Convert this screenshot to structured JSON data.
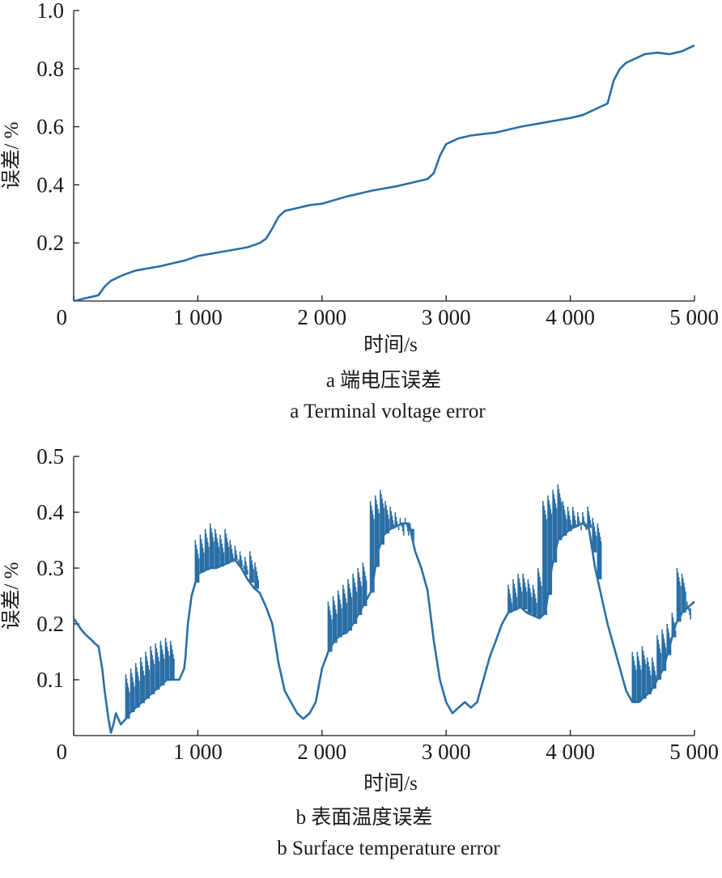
{
  "chart_data": [
    {
      "type": "line",
      "panel": "a",
      "caption_zh": "a 端电压误差",
      "caption_en": "a Terminal voltage error",
      "xlabel": "时间/s",
      "ylabel": "误差/ %",
      "xlim": [
        0,
        5000
      ],
      "ylim": [
        0,
        1.0
      ],
      "xticks": [
        0,
        1000,
        2000,
        3000,
        4000,
        5000
      ],
      "xtick_labels": [
        "0",
        "1 000",
        "2 000",
        "3 000",
        "4 000",
        "5 000"
      ],
      "yticks": [
        0.2,
        0.4,
        0.6,
        0.8,
        1.0
      ],
      "ytick_labels": [
        "0.2",
        "0.4",
        "0.6",
        "0.8",
        "1.0"
      ],
      "color": "#2b6fa6",
      "series": [
        {
          "x": [
            0,
            100,
            200,
            250,
            300,
            400,
            500,
            700,
            900,
            1000,
            1200,
            1400,
            1500,
            1550,
            1600,
            1650,
            1700,
            1800,
            1900,
            2000,
            2200,
            2400,
            2600,
            2700,
            2800,
            2850,
            2900,
            2950,
            3000,
            3100,
            3200,
            3300,
            3400,
            3600,
            3800,
            4000,
            4100,
            4200,
            4250,
            4300,
            4350,
            4400,
            4450,
            4550,
            4600,
            4700,
            4800,
            4900,
            5000
          ],
          "y": [
            0.0,
            0.01,
            0.02,
            0.05,
            0.07,
            0.09,
            0.105,
            0.12,
            0.14,
            0.155,
            0.17,
            0.185,
            0.2,
            0.215,
            0.25,
            0.29,
            0.31,
            0.32,
            0.33,
            0.335,
            0.36,
            0.38,
            0.395,
            0.405,
            0.415,
            0.42,
            0.44,
            0.5,
            0.54,
            0.56,
            0.57,
            0.575,
            0.58,
            0.6,
            0.615,
            0.63,
            0.64,
            0.66,
            0.67,
            0.68,
            0.76,
            0.8,
            0.82,
            0.84,
            0.85,
            0.855,
            0.85,
            0.86,
            0.88
          ]
        }
      ]
    },
    {
      "type": "line",
      "panel": "b",
      "caption_zh": "b 表面温度误差",
      "caption_en": "b Surface temperature error",
      "xlabel": "时间/s",
      "ylabel": "误差/ %",
      "xlim": [
        0,
        5000
      ],
      "ylim": [
        0,
        0.5
      ],
      "xticks": [
        0,
        1000,
        2000,
        3000,
        4000,
        5000
      ],
      "xtick_labels": [
        "0",
        "1 000",
        "2 000",
        "3 000",
        "4 000",
        "5 000"
      ],
      "yticks": [
        0.1,
        0.2,
        0.3,
        0.4,
        0.5
      ],
      "ytick_labels": [
        "0.1",
        "0.2",
        "0.3",
        "0.4",
        "0.5"
      ],
      "color": "#2b6fa6",
      "series": [
        {
          "x": [
            0,
            30,
            60,
            100,
            150,
            170,
            200,
            230,
            250,
            280,
            300,
            320,
            340,
            360,
            380,
            400,
            420,
            450,
            500,
            550,
            600,
            650,
            700,
            750,
            780,
            800,
            850,
            870,
            890,
            900,
            920,
            950,
            1000,
            1050,
            1100,
            1150,
            1200,
            1250,
            1300,
            1350,
            1400,
            1450,
            1500,
            1550,
            1600,
            1650,
            1700,
            1750,
            1800,
            1850,
            1900,
            1950,
            2000,
            2050,
            2100,
            2150,
            2200,
            2250,
            2300,
            2350,
            2400,
            2450,
            2500,
            2550,
            2600,
            2650,
            2700,
            2750,
            2800,
            2850,
            2900,
            2950,
            3000,
            3050,
            3100,
            3150,
            3200,
            3250,
            3300,
            3350,
            3400,
            3450,
            3500,
            3550,
            3600,
            3650,
            3700,
            3750,
            3800,
            3850,
            3900,
            3950,
            4000,
            4050,
            4100,
            4150,
            4200,
            4250,
            4300,
            4350,
            4400,
            4450,
            4500,
            4550,
            4600,
            4650,
            4700,
            4750,
            4800,
            4850,
            4900,
            4950,
            5000
          ],
          "y": [
            0.21,
            0.2,
            0.19,
            0.18,
            0.17,
            0.165,
            0.16,
            0.12,
            0.08,
            0.03,
            0.005,
            0.02,
            0.04,
            0.03,
            0.02,
            0.025,
            0.03,
            0.04,
            0.05,
            0.06,
            0.07,
            0.08,
            0.09,
            0.1,
            0.1,
            0.1,
            0.1,
            0.11,
            0.12,
            0.14,
            0.2,
            0.25,
            0.29,
            0.295,
            0.3,
            0.3,
            0.305,
            0.31,
            0.315,
            0.3,
            0.28,
            0.265,
            0.255,
            0.23,
            0.2,
            0.13,
            0.08,
            0.06,
            0.04,
            0.03,
            0.04,
            0.06,
            0.12,
            0.15,
            0.17,
            0.18,
            0.185,
            0.2,
            0.22,
            0.24,
            0.26,
            0.33,
            0.36,
            0.37,
            0.375,
            0.38,
            0.38,
            0.33,
            0.3,
            0.26,
            0.17,
            0.1,
            0.06,
            0.04,
            0.05,
            0.06,
            0.05,
            0.06,
            0.1,
            0.14,
            0.17,
            0.2,
            0.22,
            0.225,
            0.23,
            0.22,
            0.215,
            0.21,
            0.22,
            0.3,
            0.35,
            0.36,
            0.37,
            0.375,
            0.38,
            0.37,
            0.3,
            0.25,
            0.2,
            0.16,
            0.12,
            0.08,
            0.06,
            0.06,
            0.07,
            0.08,
            0.1,
            0.12,
            0.16,
            0.2,
            0.22,
            0.23,
            0.24
          ]
        }
      ],
      "spikes": {
        "x": [
          420,
          460,
          500,
          540,
          580,
          620,
          660,
          700,
          740,
          780,
          980,
          1020,
          1060,
          1100,
          1140,
          1180,
          1220,
          1260,
          1300,
          1340,
          1380,
          1420,
          1460,
          2050,
          2090,
          2130,
          2170,
          2210,
          2250,
          2290,
          2330,
          2390,
          2430,
          2470,
          2510,
          2550,
          2590,
          2630,
          2670,
          2710,
          3500,
          3540,
          3580,
          3620,
          3660,
          3700,
          3740,
          3780,
          3820,
          3860,
          3900,
          3940,
          3980,
          4020,
          4060,
          4100,
          4140,
          4180,
          4220,
          4500,
          4540,
          4580,
          4620,
          4660,
          4700,
          4740,
          4780,
          4820,
          4860,
          4900,
          4940
        ],
        "top": [
          0.11,
          0.12,
          0.13,
          0.14,
          0.15,
          0.16,
          0.165,
          0.17,
          0.175,
          0.17,
          0.35,
          0.36,
          0.37,
          0.38,
          0.37,
          0.36,
          0.37,
          0.35,
          0.34,
          0.33,
          0.32,
          0.33,
          0.31,
          0.24,
          0.25,
          0.26,
          0.27,
          0.28,
          0.29,
          0.3,
          0.31,
          0.42,
          0.43,
          0.44,
          0.42,
          0.41,
          0.4,
          0.39,
          0.39,
          0.38,
          0.27,
          0.28,
          0.29,
          0.29,
          0.28,
          0.27,
          0.3,
          0.42,
          0.43,
          0.44,
          0.45,
          0.42,
          0.41,
          0.41,
          0.4,
          0.4,
          0.41,
          0.39,
          0.38,
          0.15,
          0.15,
          0.16,
          0.14,
          0.14,
          0.18,
          0.19,
          0.2,
          0.22,
          0.3,
          0.29,
          0.24
        ]
      }
    }
  ]
}
